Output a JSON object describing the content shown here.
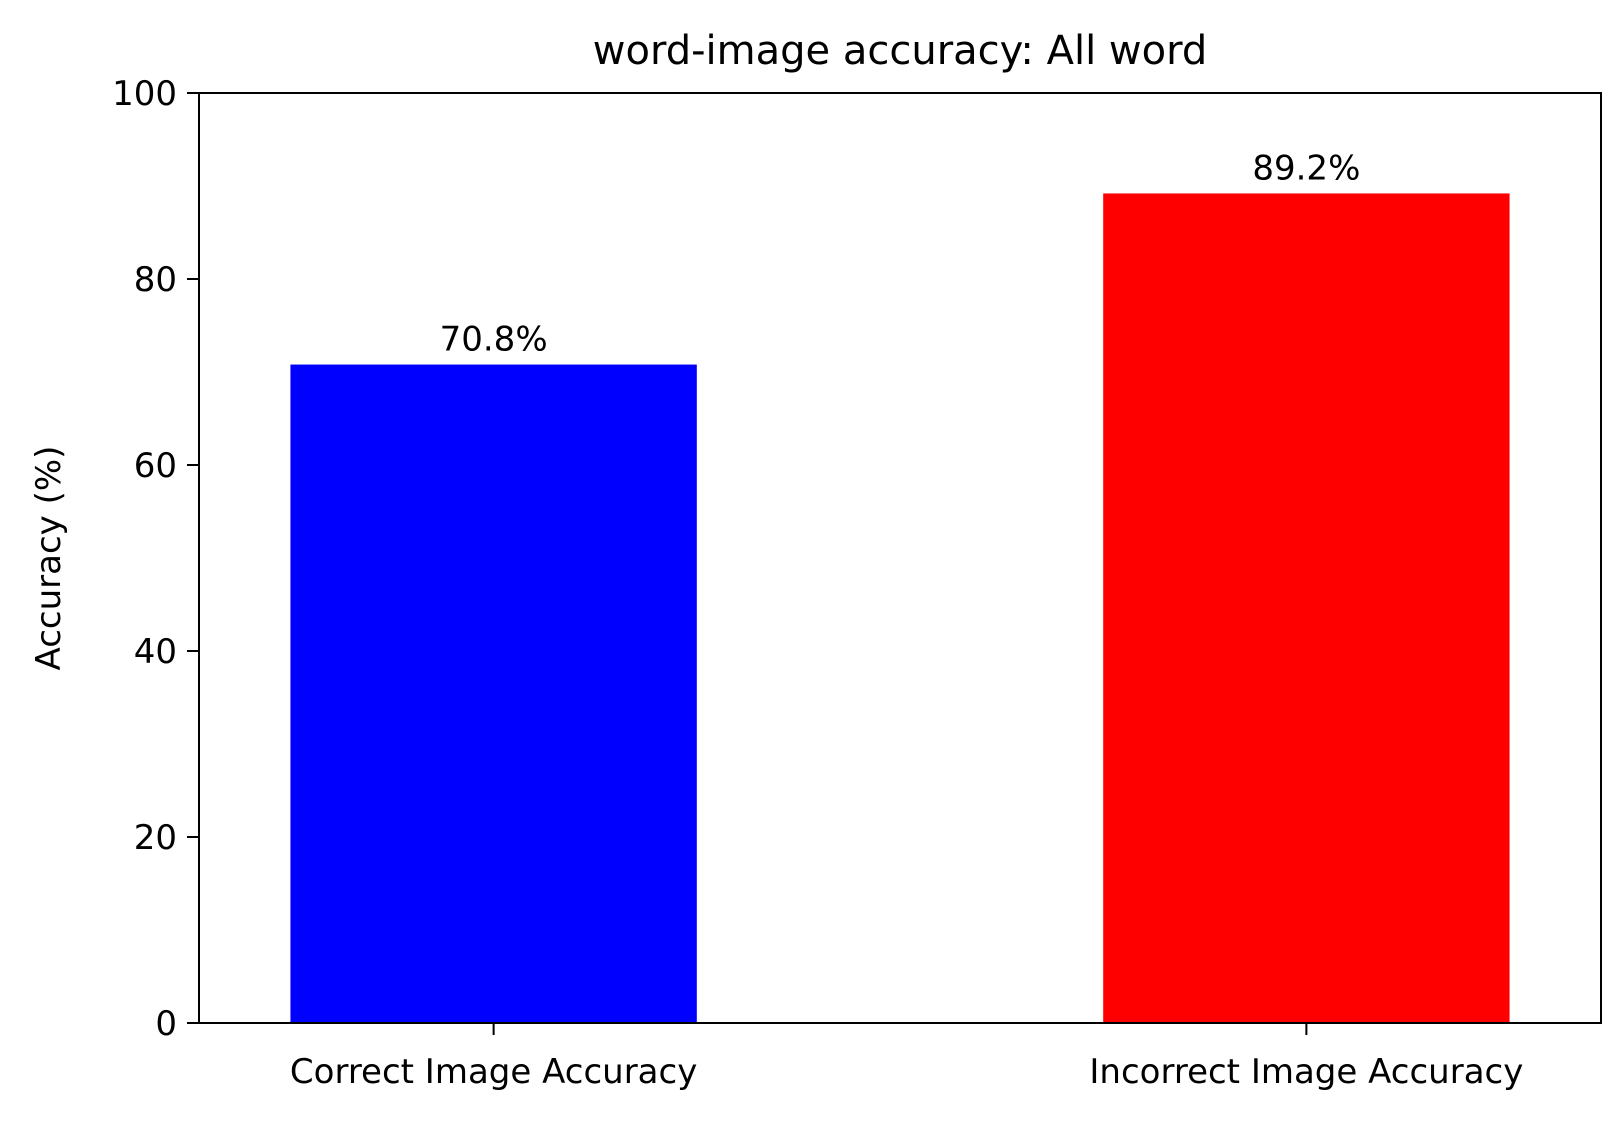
{
  "chart_data": {
    "type": "bar",
    "title": "word-image accuracy: All word",
    "xlabel": "",
    "ylabel": "Accuracy (%)",
    "categories": [
      "Correct Image Accuracy",
      "Incorrect Image Accuracy"
    ],
    "values": [
      70.8,
      89.2
    ],
    "value_labels": [
      "70.8%",
      "89.2%"
    ],
    "colors": [
      "#0000ff",
      "#ff0000"
    ],
    "ylim": [
      0,
      100
    ],
    "yticks": [
      0,
      20,
      40,
      60,
      80,
      100
    ],
    "grid": false,
    "legend": "none"
  }
}
